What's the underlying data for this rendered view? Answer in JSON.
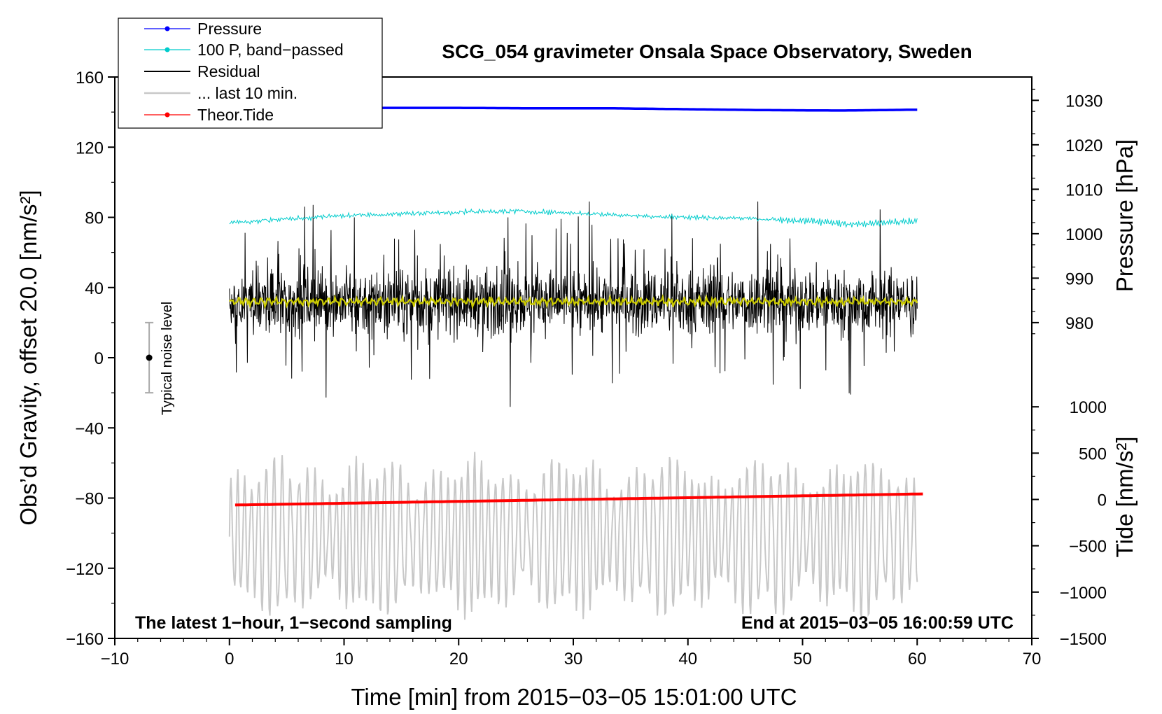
{
  "chart_data": {
    "type": "line",
    "title": "SCG_054 gravimeter Onsala Space Observatory, Sweden",
    "xlabel": "Time [min] from 2015−03−05 15:01:00 UTC",
    "ylabel_left": "Obs’d Gravity, offset 20.0 [nm/s²]",
    "ylabel_right_top": "Pressure [hPa]",
    "ylabel_right_bottom": "Tide [nm/s²]",
    "xlim": [
      -10,
      70
    ],
    "ylim_left": [
      -160,
      160
    ],
    "x_ticks": [
      -10,
      0,
      10,
      20,
      30,
      40,
      50,
      60,
      70
    ],
    "x_tick_labels": [
      "−10",
      "0",
      "10",
      "20",
      "30",
      "40",
      "50",
      "60",
      "70"
    ],
    "y_left_ticks": [
      160,
      120,
      80,
      40,
      0,
      -40,
      -80,
      -120,
      -160
    ],
    "y_left_tick_labels": [
      "160",
      "120",
      "80",
      "40",
      "0",
      "−40",
      "−80",
      "−120",
      "−160"
    ],
    "pressure_axis": {
      "ticks": [
        1030,
        1020,
        1010,
        1000,
        990,
        980
      ],
      "tick_labels": [
        "1030",
        "1020",
        "1010",
        "1000",
        "990",
        "980"
      ],
      "range_hPa": [
        980,
        1030
      ],
      "maps_to_left": [
        20,
        146.7
      ]
    },
    "tide_axis": {
      "ticks": [
        1000,
        500,
        0,
        -500,
        -1000,
        -1500
      ],
      "tick_labels": [
        "1000",
        "500",
        "0",
        "−500",
        "−1000",
        "−1500"
      ],
      "range_nm_s2": [
        -1500,
        1000
      ],
      "maps_to_left": [
        -160,
        -28
      ]
    },
    "legend": [
      {
        "label": "Pressure",
        "color": "#0000ff",
        "marker": true
      },
      {
        "label": "100 P, band−passed",
        "color": "#00cccc",
        "marker": true
      },
      {
        "label": "Residual",
        "color": "#000000",
        "marker": false
      },
      {
        "label": "... last 10 min.",
        "color": "#c8c8c8",
        "marker": false
      },
      {
        "label": "Theor.Tide",
        "color": "#ff0000",
        "marker": true
      }
    ],
    "annotations": {
      "bottom_left": "The latest 1−hour, 1−second sampling",
      "bottom_right": "End at 2015−03−05 16:00:59 UTC",
      "noise_label": "Typical noise level"
    },
    "noise_bar": {
      "x": -7,
      "center": 0,
      "half_range": 20
    },
    "series": [
      {
        "name": "Pressure",
        "color": "#0000ff",
        "x_range": [
          0,
          60
        ],
        "values_hPa": [
          1028.0,
          1028.1,
          1028.3,
          1028.3,
          1028.2,
          1028.2,
          1028.0,
          1027.8,
          1027.7,
          1027.9
        ],
        "note": "near-constant about 1028 hPa"
      },
      {
        "name": "100 P, band−passed",
        "color": "#00cccc",
        "x_range": [
          0,
          60
        ],
        "values_left_axis": [
          77,
          79,
          81,
          82,
          83,
          83.5,
          82.5,
          81,
          80,
          79.5,
          78,
          76,
          78
        ],
        "note": "slow drift with small high-frequency wiggle"
      },
      {
        "name": "Residual",
        "color": "#000000",
        "x_range": [
          0,
          60
        ],
        "baseline_left_axis": 32,
        "range_left_axis": [
          -28,
          89
        ],
        "note": "noisy residual trace"
      },
      {
        "name": "Residual smoothed",
        "color": "#cccc00",
        "x_range": [
          0,
          60
        ],
        "baseline_left_axis": 32
      },
      {
        "name": "... last 10 min.",
        "color": "#c8c8c8",
        "x_range": [
          0,
          60
        ],
        "baseline_left_axis": -100,
        "range_left_axis": [
          -152,
          -52
        ],
        "note": "oscillating gray trace"
      },
      {
        "name": "Theor.Tide",
        "color": "#ff0000",
        "x_range": [
          0.5,
          60.5
        ],
        "values_nm_s2": [
          -60,
          60
        ],
        "note": "slowly rising tide, about −60 to 60 nm/s²"
      }
    ]
  }
}
